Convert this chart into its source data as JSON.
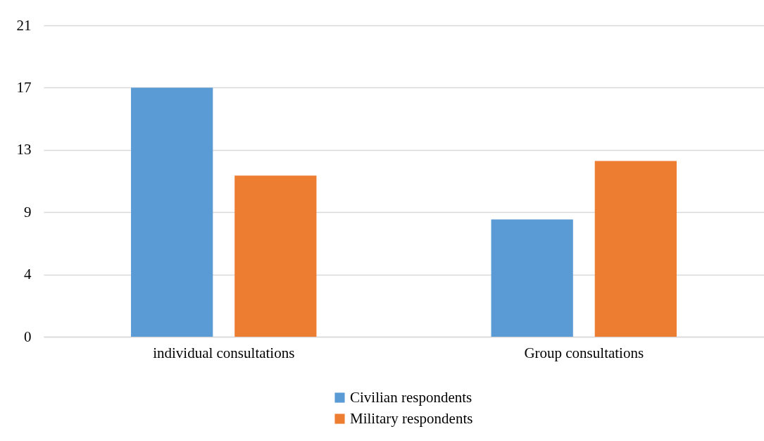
{
  "chart_data": {
    "type": "bar",
    "categories": [
      "individual consultations",
      "Group consultations"
    ],
    "series": [
      {
        "name": "Civilian respondents",
        "color": "#5b9bd5",
        "values": [
          17,
          8
        ]
      },
      {
        "name": "Military respondents",
        "color": "#ed7d31",
        "values": [
          11,
          12
        ]
      }
    ],
    "ylim": [
      0,
      21.25
    ],
    "yticks": [
      0,
      {
        "value": 4.25,
        "label": "4"
      },
      {
        "value": 8.5,
        "label": "9"
      },
      {
        "value": 12.75,
        "label": "13"
      },
      17,
      {
        "value": 21.25,
        "label": "21"
      }
    ],
    "grid": "y",
    "legend": "bottom"
  }
}
